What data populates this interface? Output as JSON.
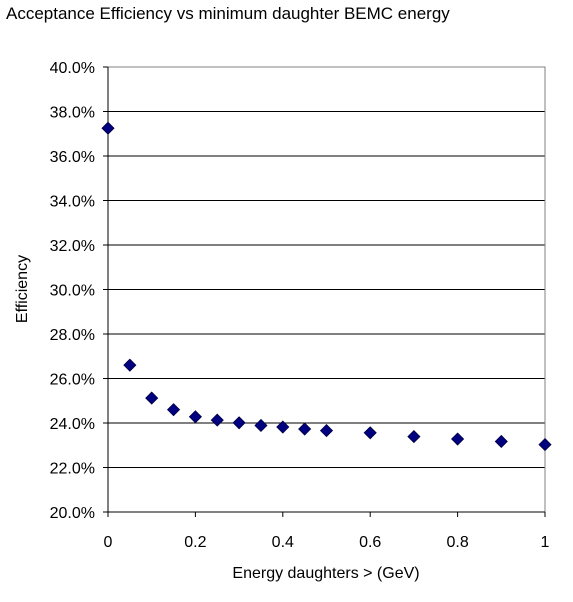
{
  "chart_data": {
    "type": "scatter",
    "title": "Acceptance Efficiency vs minimum daughter BEMC energy",
    "xlabel": "Energy daughters > (GeV)",
    "ylabel": "Efficiency",
    "xlim": [
      0,
      1
    ],
    "ylim": [
      0.2,
      0.4
    ],
    "x_ticks": [
      0,
      0.2,
      0.4,
      0.6,
      0.8,
      1
    ],
    "x_tick_labels": [
      "0",
      "0.2",
      "0.4",
      "0.6",
      "0.8",
      "1"
    ],
    "y_ticks": [
      0.2,
      0.22,
      0.24,
      0.26,
      0.28,
      0.3,
      0.32,
      0.34,
      0.36,
      0.38,
      0.4
    ],
    "y_tick_labels": [
      "20.0%",
      "22.0%",
      "24.0%",
      "26.0%",
      "28.0%",
      "30.0%",
      "32.0%",
      "34.0%",
      "36.0%",
      "38.0%",
      "40.0%"
    ],
    "grid": "horizontal",
    "legend": "none",
    "marker": "diamond",
    "colors": {
      "marker_fill": "#000080",
      "marker_stroke": "#000040",
      "grid": "#000000",
      "frame": "#808080"
    },
    "series": [
      {
        "x": [
          0,
          0.05,
          0.1,
          0.15,
          0.2,
          0.25,
          0.3,
          0.35,
          0.4,
          0.45,
          0.5,
          0.6,
          0.7,
          0.8,
          0.9,
          1.0
        ],
        "values": [
          0.3725,
          0.266,
          0.2512,
          0.246,
          0.2428,
          0.2413,
          0.2401,
          0.2389,
          0.2382,
          0.2373,
          0.2366,
          0.2356,
          0.2339,
          0.2328,
          0.2317,
          0.2303
        ]
      }
    ]
  }
}
